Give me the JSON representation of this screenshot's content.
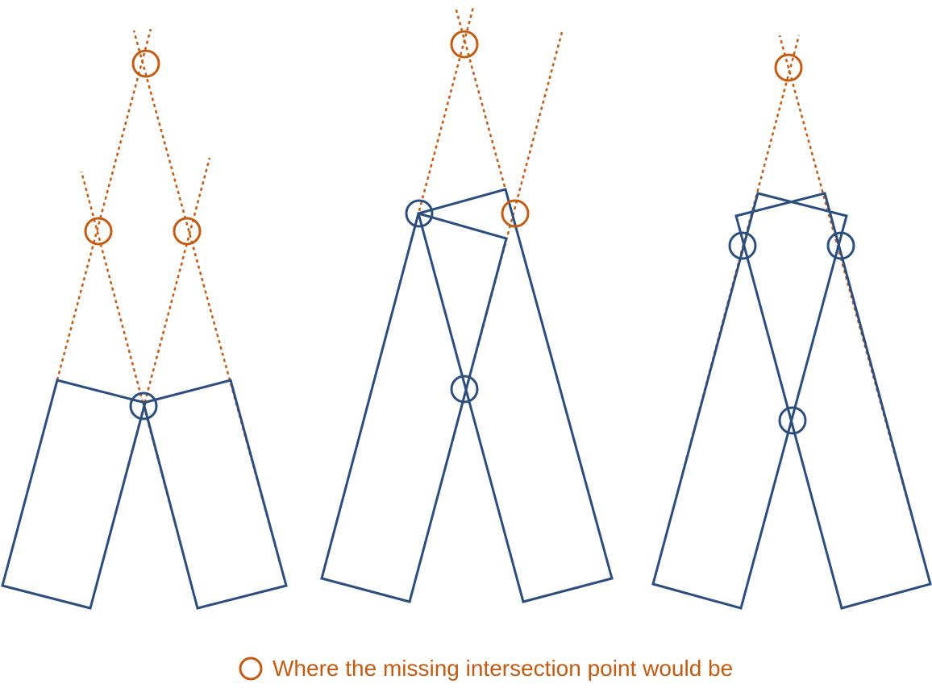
{
  "colors": {
    "solid": "#2b4e7e",
    "dashed": "#c55a11",
    "background": "#ffffff"
  },
  "legend": {
    "icon": "orange-circle-icon",
    "text": "Where the missing intersection point would be"
  },
  "panels": [
    {
      "name": "left-panel",
      "description_shapes": [
        "left-rectangle",
        "right-rectangle"
      ]
    },
    {
      "name": "middle-panel",
      "description_shapes": [
        "left-rectangle",
        "right-rectangle"
      ]
    },
    {
      "name": "right-panel",
      "description_shapes": [
        "left-rectangle",
        "right-rectangle"
      ]
    }
  ]
}
